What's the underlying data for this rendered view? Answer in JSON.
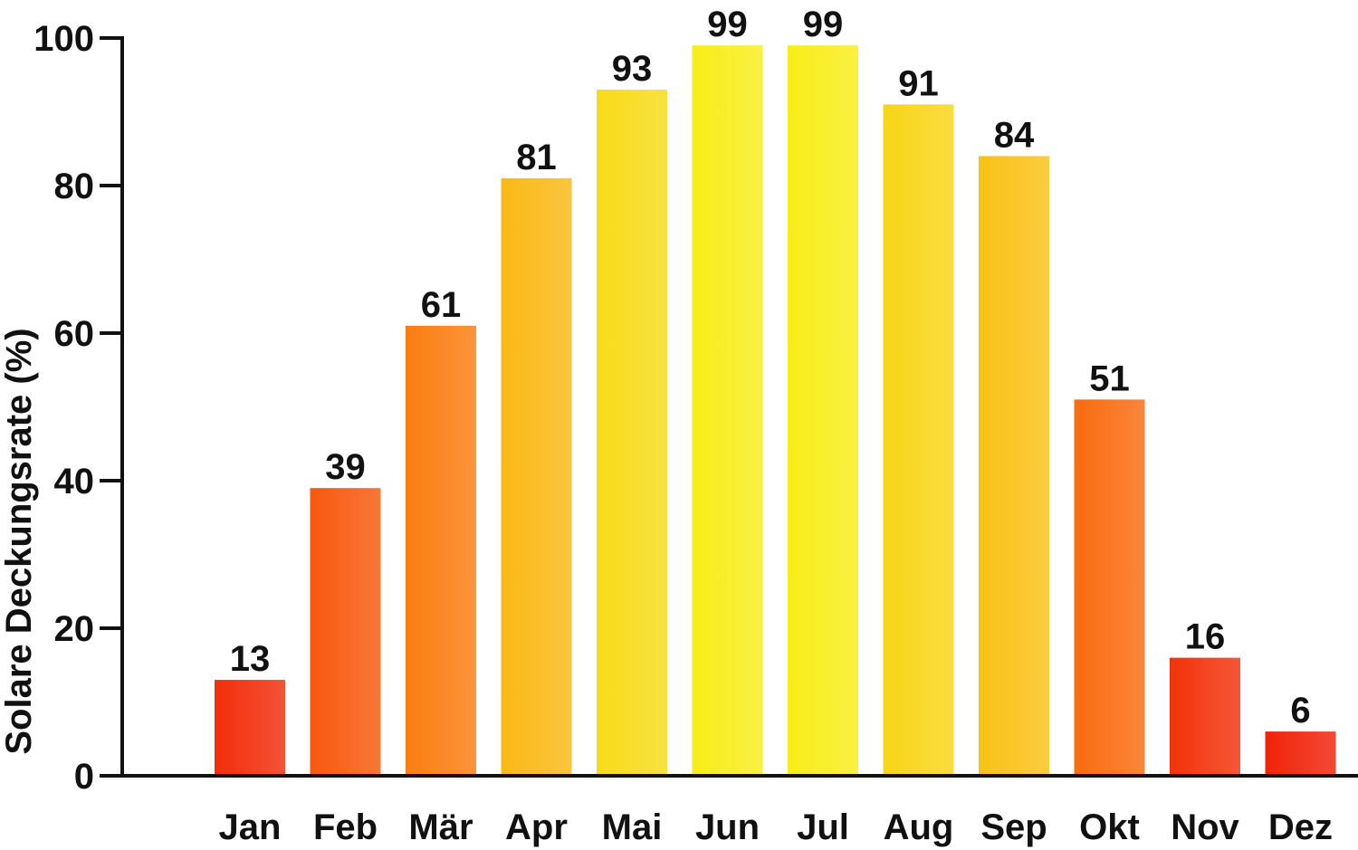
{
  "chart_data": {
    "type": "bar",
    "categories": [
      "Jan",
      "Feb",
      "Mär",
      "Apr",
      "Mai",
      "Jun",
      "Jul",
      "Aug",
      "Sep",
      "Okt",
      "Nov",
      "Dez"
    ],
    "values": [
      13,
      39,
      61,
      81,
      93,
      99,
      99,
      91,
      84,
      51,
      16,
      6
    ],
    "ylabel": "Solare Deckungsrate (%)",
    "xlabel": "",
    "title": "",
    "ylim": [
      0,
      100
    ],
    "yticks": [
      0,
      20,
      40,
      60,
      80,
      100
    ],
    "grid": false,
    "legend": "none",
    "colors": {
      "low": "#f01808",
      "mid": "#fa7a10",
      "high": "#f8f018"
    }
  }
}
